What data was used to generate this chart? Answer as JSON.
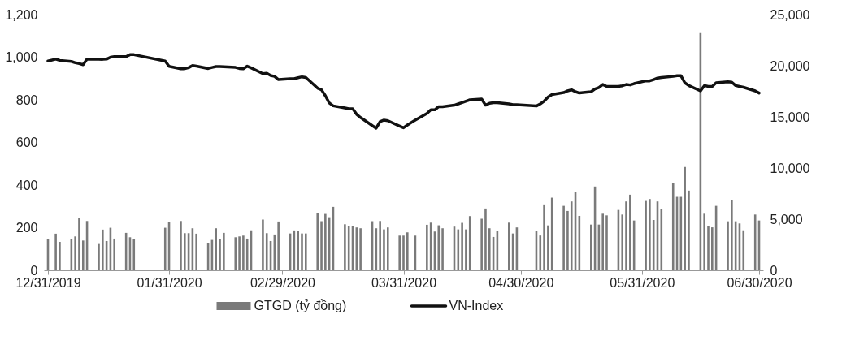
{
  "chart_data": {
    "type": "bar",
    "x": [
      "2019-12-31",
      "2020-01-02",
      "2020-01-03",
      "2020-01-06",
      "2020-01-07",
      "2020-01-08",
      "2020-01-09",
      "2020-01-10",
      "2020-01-13",
      "2020-01-14",
      "2020-01-15",
      "2020-01-16",
      "2020-01-17",
      "2020-01-20",
      "2020-01-21",
      "2020-01-22",
      "2020-01-30",
      "2020-01-31",
      "2020-02-03",
      "2020-02-04",
      "2020-02-05",
      "2020-02-06",
      "2020-02-07",
      "2020-02-10",
      "2020-02-11",
      "2020-02-12",
      "2020-02-13",
      "2020-02-14",
      "2020-02-17",
      "2020-02-18",
      "2020-02-19",
      "2020-02-20",
      "2020-02-21",
      "2020-02-24",
      "2020-02-25",
      "2020-02-26",
      "2020-02-27",
      "2020-02-28",
      "2020-03-02",
      "2020-03-03",
      "2020-03-04",
      "2020-03-05",
      "2020-03-06",
      "2020-03-09",
      "2020-03-10",
      "2020-03-11",
      "2020-03-12",
      "2020-03-13",
      "2020-03-16",
      "2020-03-17",
      "2020-03-18",
      "2020-03-19",
      "2020-03-20",
      "2020-03-23",
      "2020-03-24",
      "2020-03-25",
      "2020-03-26",
      "2020-03-27",
      "2020-03-30",
      "2020-03-31",
      "2020-04-01",
      "2020-04-03",
      "2020-04-06",
      "2020-04-07",
      "2020-04-08",
      "2020-04-09",
      "2020-04-10",
      "2020-04-13",
      "2020-04-14",
      "2020-04-15",
      "2020-04-16",
      "2020-04-17",
      "2020-04-20",
      "2020-04-21",
      "2020-04-22",
      "2020-04-23",
      "2020-04-24",
      "2020-04-27",
      "2020-04-28",
      "2020-04-29",
      "2020-05-04",
      "2020-05-05",
      "2020-05-06",
      "2020-05-07",
      "2020-05-08",
      "2020-05-11",
      "2020-05-12",
      "2020-05-13",
      "2020-05-14",
      "2020-05-15",
      "2020-05-18",
      "2020-05-19",
      "2020-05-20",
      "2020-05-21",
      "2020-05-22",
      "2020-05-25",
      "2020-05-26",
      "2020-05-27",
      "2020-05-28",
      "2020-05-29",
      "2020-06-01",
      "2020-06-02",
      "2020-06-03",
      "2020-06-04",
      "2020-06-05",
      "2020-06-08",
      "2020-06-09",
      "2020-06-10",
      "2020-06-11",
      "2020-06-12",
      "2020-06-15",
      "2020-06-16",
      "2020-06-17",
      "2020-06-18",
      "2020-06-19",
      "2020-06-22",
      "2020-06-23",
      "2020-06-24",
      "2020-06-25",
      "2020-06-26",
      "2020-06-29",
      "2020-06-30"
    ],
    "series": [
      {
        "name": "GTGD (tỷ đồng)",
        "axis": "y2",
        "color": "#7a7a7a",
        "values": [
          3050,
          3580,
          2780,
          3050,
          3310,
          5110,
          2910,
          4820,
          2570,
          3980,
          2860,
          4160,
          3100,
          3660,
          3230,
          3050,
          4160,
          4690,
          4820,
          3630,
          3630,
          4110,
          3580,
          2700,
          2970,
          4110,
          3050,
          3660,
          3230,
          3310,
          3390,
          3100,
          3900,
          4960,
          3630,
          2860,
          3500,
          4770,
          3600,
          3900,
          3870,
          3600,
          3600,
          5570,
          4800,
          5510,
          5190,
          6200,
          4500,
          4320,
          4320,
          4190,
          4110,
          4800,
          4110,
          4820,
          4000,
          4190,
          3390,
          3390,
          3710,
          3390,
          4450,
          4660,
          3790,
          4400,
          4110,
          4270,
          4000,
          4640,
          4000,
          5300,
          5040,
          6040,
          4110,
          3260,
          3840,
          4660,
          3600,
          4190,
          3860,
          3400,
          6440,
          4390,
          7100,
          6300,
          5800,
          6730,
          7630,
          5320,
          4470,
          8190,
          4470,
          5530,
          5370,
          5900,
          5450,
          6730,
          7390,
          4870,
          6780,
          6970,
          4920,
          6730,
          5990,
          8510,
          7180,
          7180,
          10100,
          7790,
          23200,
          5530,
          4340,
          4200,
          6300,
          4790,
          6860,
          4790,
          4580,
          3910,
          5450,
          4870
        ]
      },
      {
        "name": "VN-Index",
        "type": "line",
        "axis": "y",
        "color": "#111111",
        "values": [
          982,
          991,
          985,
          980,
          974,
          970,
          965,
          991,
          990,
          990,
          991,
          1000,
          1003,
          1003,
          1012,
          1012,
          982,
          957,
          946,
          946,
          951,
          961,
          958,
          947,
          952,
          956,
          956,
          955,
          952,
          947,
          946,
          958,
          950,
          923,
          925,
          914,
          910,
          895,
          899,
          899,
          904,
          908,
          905,
          855,
          847,
          819,
          785,
          772,
          762,
          758,
          758,
          732,
          717,
          679,
          667,
          698,
          705,
          702,
          677,
          669,
          682,
          705,
          736,
          753,
          753,
          768,
          768,
          775,
          781,
          787,
          794,
          800,
          804,
          775,
          784,
          787,
          787,
          781,
          777,
          777,
          771,
          781,
          794,
          813,
          825,
          834,
          842,
          847,
          838,
          832,
          838,
          851,
          858,
          872,
          863,
          863,
          866,
          872,
          870,
          876,
          889,
          889,
          895,
          902,
          905,
          910,
          913,
          913,
          880,
          867,
          842,
          867,
          863,
          863,
          880,
          885,
          883,
          867,
          863,
          859,
          842,
          832
        ]
      }
    ],
    "xlim": [
      "2019-12-31",
      "2020-06-30"
    ],
    "xticks": [
      {
        "value": "2019-12-31",
        "label": "12/31/2019"
      },
      {
        "value": "2020-01-31",
        "label": "01/31/2020"
      },
      {
        "value": "2020-02-29",
        "label": "02/29/2020"
      },
      {
        "value": "2020-03-31",
        "label": "03/31/2020"
      },
      {
        "value": "2020-04-30",
        "label": "04/30/2020"
      },
      {
        "value": "2020-05-31",
        "label": "05/31/2020"
      },
      {
        "value": "2020-06-30",
        "label": "06/30/2020"
      }
    ],
    "ylim": [
      0,
      1200
    ],
    "yticks": [
      0,
      200,
      400,
      600,
      800,
      {
        "value": 1000,
        "label": "1,000"
      },
      {
        "value": 1200,
        "label": "1,200"
      }
    ],
    "y2lim": [
      0,
      25000
    ],
    "y2ticks": [
      0,
      {
        "value": 5000,
        "label": "5,000"
      },
      {
        "value": 10000,
        "label": "10,000"
      },
      {
        "value": 15000,
        "label": "15,000"
      },
      {
        "value": 20000,
        "label": "20,000"
      },
      {
        "value": 25000,
        "label": "25,000"
      }
    ],
    "legend": "bottom"
  }
}
